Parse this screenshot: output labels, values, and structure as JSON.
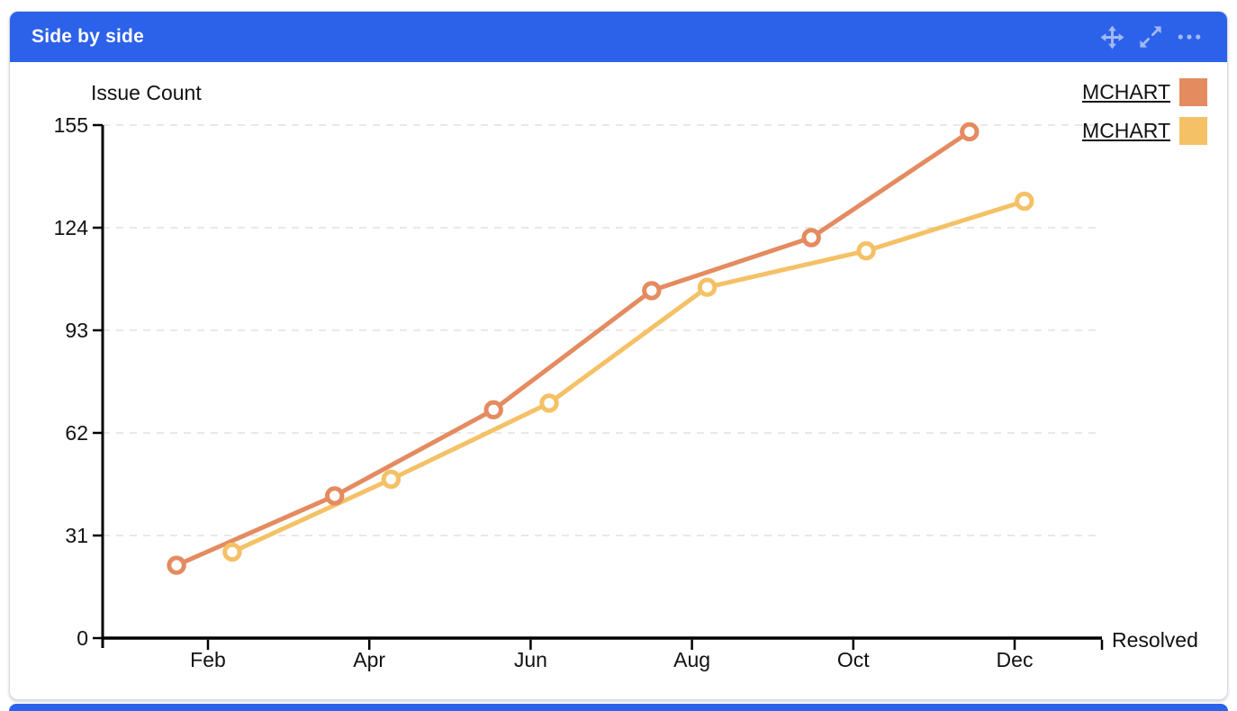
{
  "header": {
    "title": "Side by side"
  },
  "colors": {
    "header_bg": "#2c61ea",
    "header_icon": "#a3b9f3",
    "series1": "#e48b60",
    "series2": "#f4c166",
    "grid": "#e8e8e8",
    "axis": "#000000",
    "text": "#111111"
  },
  "legend": {
    "items": [
      {
        "label": "MCHART",
        "color": "#e48b60"
      },
      {
        "label": "MCHART",
        "color": "#f4c166"
      }
    ]
  },
  "chart_data": {
    "type": "line",
    "title": "",
    "ylabel": "Issue Count",
    "xlabel": "Resolved",
    "grid": "horizontal-dashed",
    "legend_position": "top-right",
    "x_axis": {
      "unit": "month",
      "tick_positions": [
        2,
        4,
        6,
        8,
        10,
        12
      ],
      "tick_labels": [
        "Feb",
        "Apr",
        "Jun",
        "Aug",
        "Oct",
        "Dec"
      ],
      "range": [
        0.75,
        13.1
      ]
    },
    "y_axis": {
      "ticks": [
        0,
        31,
        62,
        93,
        124,
        155
      ],
      "range": [
        0,
        155
      ]
    },
    "series": [
      {
        "name": "MCHART",
        "color": "#e48b60",
        "x": [
          1.61,
          3.57,
          5.54,
          7.5,
          9.48,
          11.44
        ],
        "y": [
          22,
          43,
          69,
          105,
          121,
          153
        ]
      },
      {
        "name": "MCHART",
        "color": "#f4c166",
        "x": [
          2.3,
          4.27,
          6.23,
          8.19,
          10.16,
          12.12
        ],
        "y": [
          26,
          48,
          71,
          106,
          117,
          132
        ]
      }
    ]
  }
}
